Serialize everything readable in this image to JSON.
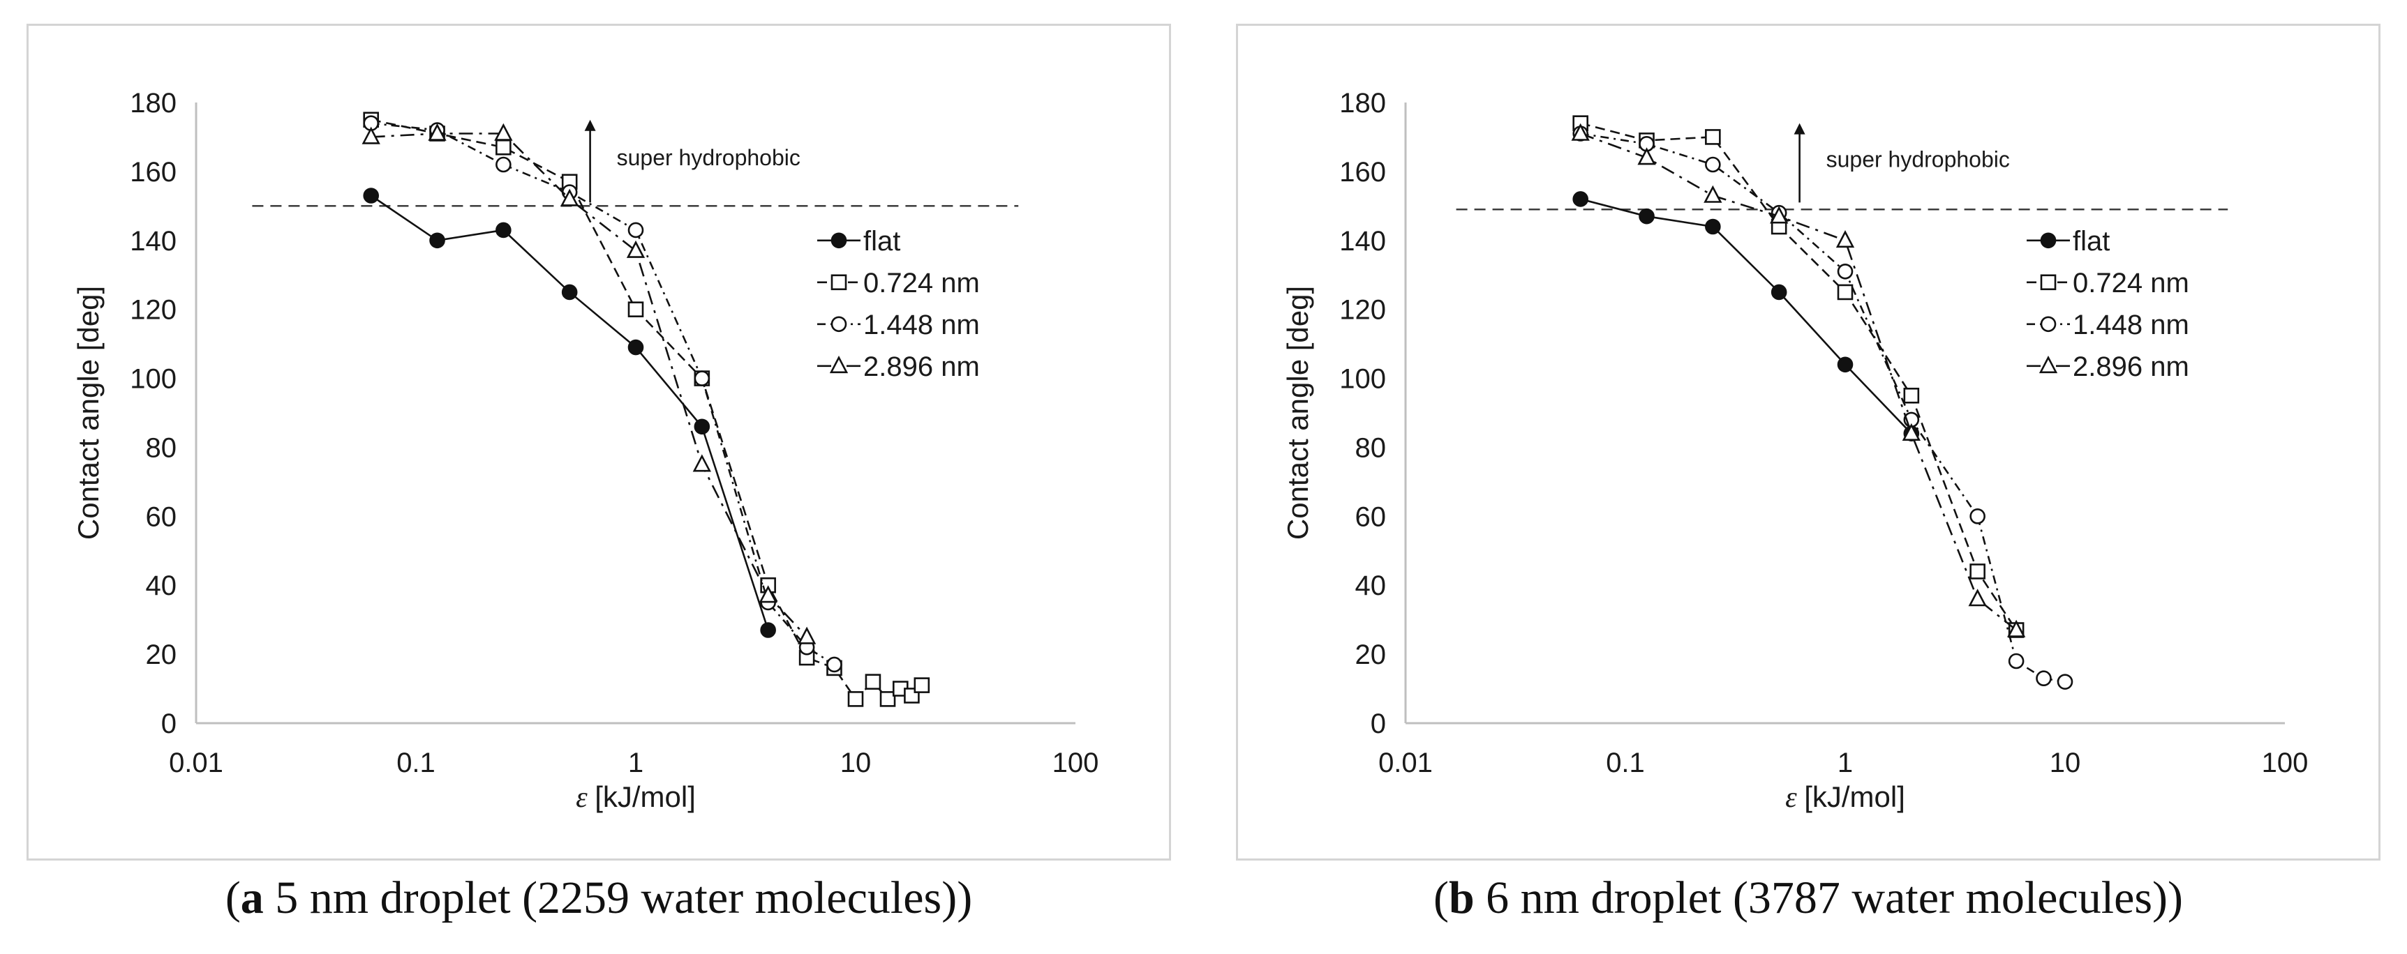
{
  "chart_data": [
    {
      "type": "line",
      "x_scale": "log",
      "xlabel_symbol": "ε",
      "xlabel": "[kJ/mol]",
      "ylabel": "Contact angle [deg]",
      "xlim": [
        0.01,
        100
      ],
      "ylim": [
        0,
        180
      ],
      "x_ticks": [
        "0.01",
        "0.1",
        "1",
        "10",
        "100"
      ],
      "y_ticks": [
        "0",
        "20",
        "40",
        "60",
        "80",
        "100",
        "120",
        "140",
        "160",
        "180"
      ],
      "threshold": {
        "y": 150,
        "x_range": [
          0.018,
          55
        ],
        "style": "dashed"
      },
      "annotation": {
        "text": "super hydrophobic",
        "x": 0.62,
        "y_from": 151,
        "y_to": 175
      },
      "legend_position": "center-right",
      "caption": {
        "label": "a",
        "text": " 5 nm droplet (2259 water molecules)"
      },
      "series": [
        {
          "name": "flat",
          "marker": "filled-circle",
          "line": "solid",
          "x": [
            0.0625,
            0.125,
            0.25,
            0.5,
            1,
            2,
            4
          ],
          "y": [
            153,
            140,
            143,
            125,
            109,
            86,
            27
          ]
        },
        {
          "name": "0.724 nm",
          "marker": "square",
          "line": "dashed",
          "x": [
            0.0625,
            0.125,
            0.25,
            0.5,
            1,
            2,
            4,
            6,
            8,
            10,
            12,
            14,
            16,
            18,
            20
          ],
          "y": [
            175,
            171,
            167,
            157,
            120,
            100,
            40,
            19,
            16,
            7,
            12,
            7,
            10,
            8,
            11
          ]
        },
        {
          "name": "1.448 nm",
          "marker": "circle",
          "line": "dash-dot",
          "x": [
            0.0625,
            0.125,
            0.25,
            0.5,
            1,
            2,
            4,
            6,
            8
          ],
          "y": [
            174,
            172,
            162,
            154,
            143,
            100,
            35,
            22,
            17
          ]
        },
        {
          "name": "2.896 nm",
          "marker": "triangle",
          "line": "long-dash",
          "x": [
            0.0625,
            0.125,
            0.25,
            0.5,
            1,
            2,
            4,
            6
          ],
          "y": [
            170,
            171,
            171,
            152,
            137,
            75,
            37,
            25
          ]
        }
      ]
    },
    {
      "type": "line",
      "x_scale": "log",
      "xlabel_symbol": "ε",
      "xlabel": "[kJ/mol]",
      "ylabel": "Contact angle [deg]",
      "xlim": [
        0.01,
        100
      ],
      "ylim": [
        0,
        180
      ],
      "x_ticks": [
        "0.01",
        "0.1",
        "1",
        "10",
        "100"
      ],
      "y_ticks": [
        "0",
        "20",
        "40",
        "60",
        "80",
        "100",
        "120",
        "140",
        "160",
        "180"
      ],
      "threshold": {
        "y": 149,
        "x_range": [
          0.017,
          55
        ],
        "style": "dashed"
      },
      "annotation": {
        "text": "super hydrophobic",
        "x": 0.62,
        "y_from": 151,
        "y_to": 174
      },
      "legend_position": "center-right",
      "caption": {
        "label": "b",
        "text": " 6 nm droplet (3787 water molecules)"
      },
      "series": [
        {
          "name": "flat",
          "marker": "filled-circle",
          "line": "solid",
          "x": [
            0.0625,
            0.125,
            0.25,
            0.5,
            1,
            2
          ],
          "y": [
            152,
            147,
            144,
            125,
            104,
            84
          ]
        },
        {
          "name": "0.724 nm",
          "marker": "square",
          "line": "dashed",
          "x": [
            0.0625,
            0.125,
            0.25,
            0.5,
            1,
            2,
            4,
            6
          ],
          "y": [
            174,
            169,
            170,
            144,
            125,
            95,
            44,
            27
          ]
        },
        {
          "name": "1.448 nm",
          "marker": "circle",
          "line": "dash-dot",
          "x": [
            0.0625,
            0.125,
            0.25,
            0.5,
            1,
            2,
            4,
            6,
            8,
            10
          ],
          "y": [
            171,
            168,
            162,
            148,
            131,
            88,
            60,
            18,
            13,
            12
          ]
        },
        {
          "name": "2.896 nm",
          "marker": "triangle",
          "line": "long-dash",
          "x": [
            0.0625,
            0.125,
            0.25,
            0.5,
            1,
            2,
            4,
            6
          ],
          "y": [
            171,
            164,
            153,
            147,
            140,
            84,
            36,
            27
          ]
        }
      ]
    }
  ]
}
